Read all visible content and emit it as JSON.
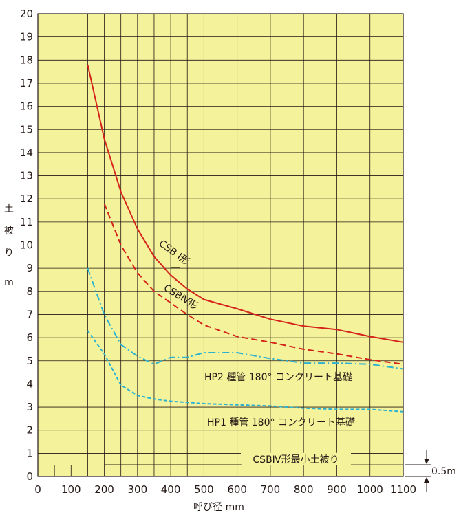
{
  "chart_data": {
    "type": "line",
    "xlabel": "呼び径 mm",
    "ylabel_chars": [
      "土",
      "被",
      "り"
    ],
    "ylabel_unit": "m",
    "xlim": [
      0,
      1100
    ],
    "ylim": [
      0,
      20
    ],
    "x_ticks": [
      0,
      100,
      200,
      300,
      400,
      500,
      600,
      700,
      800,
      900,
      1000,
      1100
    ],
    "y_ticks": [
      0,
      1,
      2,
      3,
      4,
      5,
      6,
      7,
      8,
      9,
      10,
      11,
      12,
      13,
      14,
      15,
      16,
      17,
      18,
      19,
      20
    ],
    "vertical_gridlines": [
      150,
      200,
      250,
      300,
      350,
      400,
      450,
      500,
      600,
      700,
      800,
      900,
      1000
    ],
    "grid": true,
    "background_color": "#f4f29a",
    "series": [
      {
        "name": "CSB Ⅰ形",
        "color": "#d5231b",
        "style": "solid",
        "x": [
          150,
          200,
          250,
          300,
          350,
          400,
          450,
          500,
          600,
          700,
          800,
          900,
          1000,
          1100
        ],
        "y": [
          17.8,
          14.6,
          12.3,
          10.7,
          9.5,
          8.7,
          8.1,
          7.65,
          7.25,
          6.8,
          6.5,
          6.35,
          6.05,
          5.8
        ]
      },
      {
        "name": "CSBⅣ形",
        "color": "#d5231b",
        "style": "dashed",
        "x": [
          200,
          250,
          300,
          350,
          400,
          450,
          500,
          600,
          700,
          800,
          900,
          1000,
          1100
        ],
        "y": [
          11.8,
          10.0,
          8.8,
          8.0,
          7.5,
          7.0,
          6.55,
          6.05,
          5.8,
          5.5,
          5.3,
          5.05,
          4.85
        ]
      },
      {
        "name": "HP2 種管 180°  コンクリート基礎",
        "color": "#2cb2d1",
        "style": "dashdot",
        "x": [
          150,
          200,
          250,
          300,
          350,
          400,
          450,
          500,
          600,
          700,
          800,
          900,
          1000,
          1100
        ],
        "y": [
          9.0,
          7.0,
          5.7,
          5.2,
          4.85,
          5.15,
          5.15,
          5.35,
          5.35,
          5.1,
          4.9,
          4.9,
          4.85,
          4.65
        ]
      },
      {
        "name": "HP1 種管 180°  コンクリート基礎",
        "color": "#2cb2d1",
        "style": "dotted",
        "x": [
          150,
          200,
          250,
          300,
          350,
          400,
          450,
          500,
          600,
          700,
          800,
          900,
          1000,
          1100
        ],
        "y": [
          6.3,
          5.3,
          3.95,
          3.5,
          3.35,
          3.25,
          3.2,
          3.15,
          3.1,
          3.05,
          2.95,
          2.9,
          2.9,
          2.8
        ]
      },
      {
        "name": "CSBⅣ形最小土被り",
        "color": "#231815",
        "style": "solid",
        "x": [
          200,
          1100
        ],
        "y": [
          0.5,
          0.5
        ]
      }
    ],
    "annotations": {
      "csb1": "CSB Ⅰ形",
      "csb4": "CSBⅣ形",
      "hp2": "HP2 種管 180°  コンクリート基礎",
      "hp1": "HP1 種管 180°  コンクリート基礎",
      "min_cover": "CSBⅣ形最小土被り",
      "half_meter": "0.5m"
    }
  }
}
